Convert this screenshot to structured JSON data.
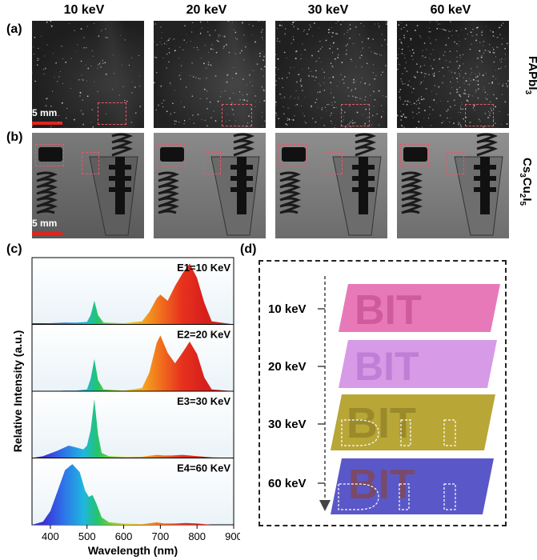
{
  "columns": [
    "10 keV",
    "20 keV",
    "30 keV",
    "60 keV"
  ],
  "panel_labels": {
    "a": "(a)",
    "b": "(b)",
    "c": "(c)",
    "d": "(d)"
  },
  "row_a_material": "FAPbI",
  "row_a_sub": "3",
  "row_b_material_parts": [
    "Cs",
    "3",
    "Cu",
    "2",
    "I",
    "5"
  ],
  "scale_bar_label": "5 mm",
  "colors": {
    "scale_bar": "#e0251f",
    "roi": "#e35a6a"
  },
  "chart_data": {
    "type": "area",
    "xlabel": "Wavelength (nm)",
    "ylabel": "Relative Intensity (a.u.)",
    "xlim": [
      350,
      900
    ],
    "xticks": [
      400,
      500,
      600,
      700,
      800,
      900
    ],
    "series": [
      {
        "name": "E1=10 KeV",
        "x": [
          350,
          400,
          440,
          470,
          500,
          510,
          520,
          530,
          545,
          600,
          650,
          670,
          690,
          700,
          720,
          740,
          760,
          780,
          800,
          820,
          840,
          900
        ],
        "y": [
          0.02,
          0.02,
          0.03,
          0.03,
          0.04,
          0.15,
          0.38,
          0.15,
          0.03,
          0.02,
          0.05,
          0.2,
          0.42,
          0.48,
          0.38,
          0.62,
          0.82,
          0.98,
          0.75,
          0.35,
          0.05,
          0.0
        ]
      },
      {
        "name": "E2=20 KeV",
        "x": [
          350,
          400,
          440,
          470,
          500,
          510,
          520,
          530,
          545,
          600,
          650,
          670,
          690,
          700,
          720,
          740,
          760,
          780,
          800,
          820,
          840,
          900
        ],
        "y": [
          0.0,
          0.0,
          0.01,
          0.01,
          0.03,
          0.2,
          0.52,
          0.18,
          0.03,
          0.01,
          0.05,
          0.3,
          0.78,
          0.9,
          0.62,
          0.45,
          0.62,
          0.8,
          0.6,
          0.22,
          0.03,
          0.0
        ]
      },
      {
        "name": "E3=30 KeV",
        "x": [
          350,
          380,
          420,
          450,
          470,
          490,
          500,
          510,
          520,
          530,
          540,
          560,
          600,
          650,
          690,
          710,
          730,
          760,
          780,
          800,
          840,
          900
        ],
        "y": [
          0.0,
          0.03,
          0.12,
          0.2,
          0.17,
          0.14,
          0.2,
          0.45,
          0.95,
          0.38,
          0.08,
          0.03,
          0.02,
          0.02,
          0.05,
          0.04,
          0.04,
          0.05,
          0.04,
          0.03,
          0.01,
          0.0
        ]
      },
      {
        "name": "E4=60 KeV",
        "x": [
          350,
          380,
          400,
          420,
          440,
          460,
          480,
          495,
          505,
          515,
          525,
          540,
          560,
          600,
          650,
          690,
          710,
          740,
          770,
          800,
          840,
          900
        ],
        "y": [
          0.0,
          0.05,
          0.22,
          0.55,
          0.88,
          0.98,
          0.85,
          0.55,
          0.45,
          0.48,
          0.35,
          0.12,
          0.04,
          0.02,
          0.01,
          0.04,
          0.02,
          0.02,
          0.03,
          0.02,
          0.0,
          0.0
        ]
      }
    ]
  },
  "panel_d": {
    "energies": [
      "10 keV",
      "20 keV",
      "30 keV",
      "60 keV"
    ],
    "text": "BIT"
  }
}
